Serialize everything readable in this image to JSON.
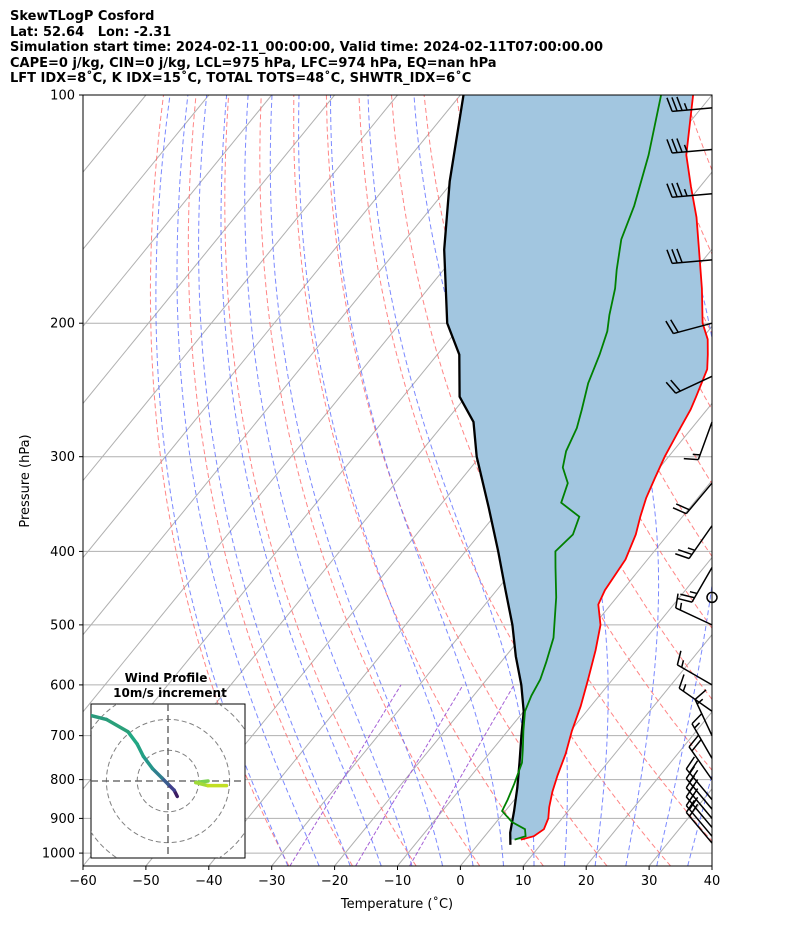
{
  "header": {
    "line1": "SkewTLogP Cosford",
    "line2": "Lat: 52.64   Lon: -2.31",
    "line3": "Simulation start time: 2024-02-11_00:00:00, Valid time: 2024-02-11T07:00:00.00",
    "line4": "CAPE=0 j/kg, CIN=0 j/kg, LCL=975 hPa, LFC=974 hPa, EQ=nan hPa",
    "line5": "LFT IDX=8˚C, K IDX=15˚C, TOTAL TOTS=48˚C, SHWTR_IDX=6˚C"
  },
  "colors": {
    "temperature": "#ff0000",
    "dewpoint": "#008000",
    "parcel": "#000000",
    "shading": "#a2c6e0",
    "dry_adiabat": "#ff6666",
    "moist_adiabat": "#5a6cff",
    "mixing_ratio": "#9b4fd1",
    "isotherm": "#b0b0b0",
    "hodograph_ring": "#808080"
  },
  "chart_data": [
    {
      "type": "line",
      "subtype": "skew-t log-p",
      "xlabel": "Temperature (˚C)",
      "ylabel": "Pressure (hPa)",
      "xlim": [
        -60,
        40
      ],
      "ylim": [
        1040,
        100
      ],
      "y_scale": "log",
      "grid": true,
      "x_ticks": [
        "−60",
        "−50",
        "−40",
        "−30",
        "−20",
        "−10",
        "0",
        "10",
        "20",
        "30",
        "40"
      ],
      "y_ticks": [
        "100",
        "200",
        "300",
        "400",
        "500",
        "600",
        "700",
        "800",
        "900",
        "1000"
      ],
      "series": [
        {
          "key": "temperature",
          "points": [
            [
              6.2,
              960
            ],
            [
              7.8,
              950
            ],
            [
              8.5,
              930
            ],
            [
              7.8,
              900
            ],
            [
              6.5,
              870
            ],
            [
              5.0,
              830
            ],
            [
              3.7,
              790
            ],
            [
              2.2,
              740
            ],
            [
              0.2,
              690
            ],
            [
              -1.6,
              640
            ],
            [
              -3.9,
              590
            ],
            [
              -6.5,
              540
            ],
            [
              -9.0,
              500
            ],
            [
              -12.0,
              470
            ],
            [
              -12.8,
              450
            ],
            [
              -13.5,
              410
            ],
            [
              -15.1,
              380
            ],
            [
              -16.7,
              360
            ],
            [
              -18.2,
              340
            ],
            [
              -19.4,
              320
            ],
            [
              -20.6,
              300
            ],
            [
              -21.6,
              280
            ],
            [
              -22.6,
              260
            ],
            [
              -23.4,
              250
            ],
            [
              -25.2,
              230
            ],
            [
              -27.0,
              220
            ],
            [
              -29.0,
              210
            ],
            [
              -31.9,
              200
            ],
            [
              -36.5,
              180
            ],
            [
              -42.0,
              160
            ],
            [
              -46.6,
              145
            ],
            [
              -51.5,
              132
            ],
            [
              -56.3,
              120
            ],
            [
              -63.0,
              100
            ]
          ]
        },
        {
          "key": "dewpoint",
          "points": [
            [
              5.2,
              960
            ],
            [
              6.5,
              950
            ],
            [
              5.5,
              930
            ],
            [
              2.5,
              910
            ],
            [
              -0.5,
              880
            ],
            [
              -1.1,
              850
            ],
            [
              -2.1,
              810
            ],
            [
              -3.6,
              760
            ],
            [
              -5.2,
              730
            ],
            [
              -7.5,
              690
            ],
            [
              -9.8,
              650
            ],
            [
              -10.8,
              620
            ],
            [
              -11.5,
              590
            ],
            [
              -12.8,
              560
            ],
            [
              -14.8,
              520
            ],
            [
              -19.6,
              460
            ],
            [
              -23.6,
              420
            ],
            [
              -25.7,
              400
            ],
            [
              -25.1,
              380
            ],
            [
              -26.4,
              360
            ],
            [
              -31.1,
              345
            ],
            [
              -32.6,
              325
            ],
            [
              -35.4,
              310
            ],
            [
              -37.0,
              295
            ],
            [
              -38.3,
              275
            ],
            [
              -39.9,
              260
            ],
            [
              -42.3,
              240
            ],
            [
              -44.2,
              220
            ],
            [
              -46.0,
              205
            ],
            [
              -47.8,
              195
            ],
            [
              -50.3,
              180
            ],
            [
              -52.5,
              170
            ],
            [
              -55.7,
              155
            ],
            [
              -58.0,
              140
            ],
            [
              -62.3,
              120
            ],
            [
              -68.1,
              100
            ]
          ]
        },
        {
          "key": "parcel",
          "points": [
            [
              5.2,
              975
            ],
            [
              3.6,
              940
            ],
            [
              1.4,
              880
            ],
            [
              -1.1,
              820
            ],
            [
              -4.0,
              760
            ],
            [
              -7.2,
              700
            ],
            [
              -10.0,
              650
            ],
            [
              -13.8,
              600
            ],
            [
              -18.4,
              550
            ],
            [
              -23.0,
              500
            ],
            [
              -28.6,
              450
            ],
            [
              -34.8,
              400
            ],
            [
              -42.0,
              350
            ],
            [
              -50.5,
              300
            ],
            [
              -55.5,
              270
            ],
            [
              -61.0,
              250
            ],
            [
              -66.5,
              220
            ],
            [
              -72.5,
              200
            ],
            [
              -82.5,
              160
            ],
            [
              -90.5,
              130
            ],
            [
              -99.5,
              100
            ]
          ]
        }
      ],
      "wind_barbs": [
        {
          "p": 970,
          "speed_kt": 20,
          "direction_deg": 320
        },
        {
          "p": 950,
          "speed_kt": 20,
          "direction_deg": 320
        },
        {
          "p": 925,
          "speed_kt": 20,
          "direction_deg": 320
        },
        {
          "p": 900,
          "speed_kt": 20,
          "direction_deg": 320
        },
        {
          "p": 875,
          "speed_kt": 20,
          "direction_deg": 320
        },
        {
          "p": 850,
          "speed_kt": 20,
          "direction_deg": 320
        },
        {
          "p": 800,
          "speed_kt": 20,
          "direction_deg": 325
        },
        {
          "p": 750,
          "speed_kt": 15,
          "direction_deg": 330
        },
        {
          "p": 700,
          "speed_kt": 15,
          "direction_deg": 335
        },
        {
          "p": 650,
          "speed_kt": 15,
          "direction_deg": 305
        },
        {
          "p": 600,
          "speed_kt": 15,
          "direction_deg": 300
        },
        {
          "p": 500,
          "speed_kt": 15,
          "direction_deg": 295
        },
        {
          "p": 460,
          "speed_kt": 0,
          "direction_deg": 0
        },
        {
          "p": 420,
          "speed_kt": 25,
          "direction_deg": 210
        },
        {
          "p": 370,
          "speed_kt": 25,
          "direction_deg": 215
        },
        {
          "p": 325,
          "speed_kt": 20,
          "direction_deg": 220
        },
        {
          "p": 270,
          "speed_kt": 15,
          "direction_deg": 200
        },
        {
          "p": 235,
          "speed_kt": 20,
          "direction_deg": 245
        },
        {
          "p": 200,
          "speed_kt": 20,
          "direction_deg": 255
        },
        {
          "p": 165,
          "speed_kt": 30,
          "direction_deg": 265
        },
        {
          "p": 135,
          "speed_kt": 35,
          "direction_deg": 265
        },
        {
          "p": 118,
          "speed_kt": 35,
          "direction_deg": 265
        },
        {
          "p": 104,
          "speed_kt": 35,
          "direction_deg": 265
        }
      ]
    },
    {
      "type": "line",
      "subtype": "hodograph",
      "title": "Wind Profile",
      "subtitle": "10m/s increment",
      "ring_spacing_ms": 10,
      "u_range": [
        -30,
        30
      ],
      "v_range": [
        -30,
        30
      ],
      "u": [
        3,
        2,
        0,
        -2,
        -5,
        -8,
        -10,
        -13,
        -20,
        -28,
        -35
      ],
      "v": [
        -5,
        -3,
        -1,
        1,
        4,
        8,
        12,
        16,
        20,
        22,
        26
      ],
      "tail_u": [
        6,
        10,
        16
      ],
      "tail_v": [
        0,
        -1,
        -1
      ]
    }
  ]
}
